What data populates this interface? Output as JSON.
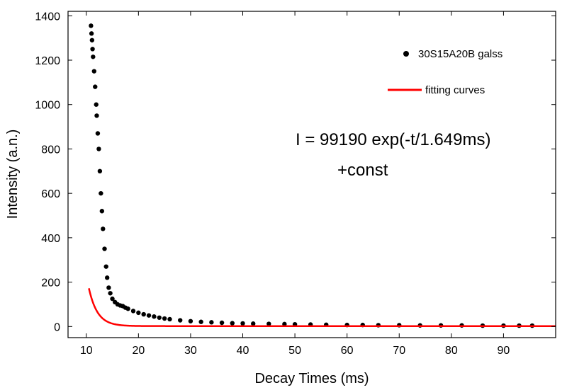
{
  "chart_data": {
    "type": "scatter",
    "xlabel": "Decay Times (ms)",
    "ylabel": "Intensity (a.n.)",
    "xlim": [
      6.5,
      100
    ],
    "ylim": [
      -50,
      1420
    ],
    "x_ticks": [
      10,
      20,
      30,
      40,
      50,
      60,
      70,
      80,
      90
    ],
    "y_ticks": [
      0,
      200,
      400,
      600,
      800,
      1000,
      1200,
      1400
    ],
    "grid": false,
    "legend_position": "top-right",
    "series": [
      {
        "name": "30S15A20B galss",
        "kind": "scatter",
        "color": "#000000",
        "points": [
          [
            10.9,
            1355
          ],
          [
            11.0,
            1320
          ],
          [
            11.1,
            1290
          ],
          [
            11.2,
            1250
          ],
          [
            11.3,
            1215
          ],
          [
            11.5,
            1150
          ],
          [
            11.7,
            1080
          ],
          [
            11.9,
            1000
          ],
          [
            12.0,
            950
          ],
          [
            12.2,
            870
          ],
          [
            12.4,
            800
          ],
          [
            12.6,
            700
          ],
          [
            12.8,
            600
          ],
          [
            13.0,
            520
          ],
          [
            13.2,
            440
          ],
          [
            13.5,
            350
          ],
          [
            13.8,
            270
          ],
          [
            14.0,
            220
          ],
          [
            14.3,
            175
          ],
          [
            14.6,
            150
          ],
          [
            15.0,
            125
          ],
          [
            15.5,
            110
          ],
          [
            16.0,
            100
          ],
          [
            16.5,
            95
          ],
          [
            17.0,
            92
          ],
          [
            17.5,
            85
          ],
          [
            18.0,
            80
          ],
          [
            19.0,
            70
          ],
          [
            20.0,
            62
          ],
          [
            21.0,
            55
          ],
          [
            22.0,
            50
          ],
          [
            23.0,
            45
          ],
          [
            24.0,
            40
          ],
          [
            25.0,
            36
          ],
          [
            26.0,
            33
          ],
          [
            28.0,
            28
          ],
          [
            30.0,
            24
          ],
          [
            32.0,
            21
          ],
          [
            34.0,
            19
          ],
          [
            36.0,
            17
          ],
          [
            38.0,
            15
          ],
          [
            40.0,
            14
          ],
          [
            42.0,
            13
          ],
          [
            45.0,
            12
          ],
          [
            48.0,
            11
          ],
          [
            50.0,
            10
          ],
          [
            53.0,
            9
          ],
          [
            56.0,
            8
          ],
          [
            60.0,
            7
          ],
          [
            63.0,
            7
          ],
          [
            66.0,
            6
          ],
          [
            70.0,
            6
          ],
          [
            74.0,
            5
          ],
          [
            78.0,
            5
          ],
          [
            82.0,
            5
          ],
          [
            86.0,
            4
          ],
          [
            90.0,
            4
          ],
          [
            93.0,
            4
          ],
          [
            95.5,
            4
          ]
        ]
      },
      {
        "name": "fitting curves",
        "kind": "line",
        "color": "#ff0000",
        "function": "I = 99190 exp(-t/1.649) + const",
        "amplitude": 99190,
        "tau": 1.649,
        "const": 2,
        "x_range": [
          10.5,
          100
        ]
      }
    ],
    "annotations": [
      "I = 99190 exp(-t/1.649ms)",
      "+const"
    ]
  }
}
